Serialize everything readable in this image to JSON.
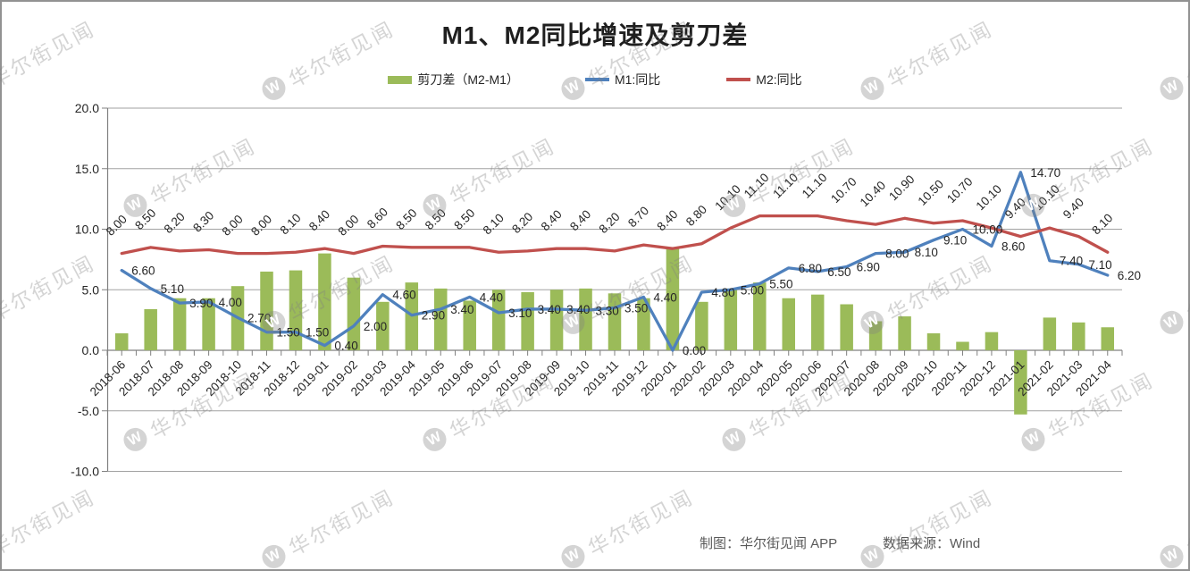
{
  "page": {
    "title": "M1、M2同比增速及剪刀差",
    "footer": {
      "credit": "制图：华尔街见闻 APP",
      "source": "数据来源：Wind"
    },
    "watermark": {
      "text": "华尔街见闻",
      "logo_letter": "W"
    }
  },
  "legend": [
    {
      "label": "剪刀差（M2-M1）",
      "swatch": "bar",
      "color": "#9BBB59"
    },
    {
      "label": "M1:同比",
      "swatch": "line",
      "color": "#4F81BD"
    },
    {
      "label": "M2:同比",
      "swatch": "line",
      "color": "#C0504D"
    }
  ],
  "chart_data": {
    "type": "combo",
    "title": "M1、M2同比增速及剪刀差",
    "categories": [
      "2018-06",
      "2018-07",
      "2018-08",
      "2018-09",
      "2018-10",
      "2018-11",
      "2018-12",
      "2019-01",
      "2019-02",
      "2019-03",
      "2019-04",
      "2019-05",
      "2019-06",
      "2019-07",
      "2019-08",
      "2019-09",
      "2019-10",
      "2019-11",
      "2019-12",
      "2020-01",
      "2020-02",
      "2020-03",
      "2020-04",
      "2020-05",
      "2020-06",
      "2020-07",
      "2020-08",
      "2020-09",
      "2020-10",
      "2020-11",
      "2020-12",
      "2021-01",
      "2021-02",
      "2021-03",
      "2021-04"
    ],
    "series": [
      {
        "name": "剪刀差（M2-M1）",
        "type": "bar",
        "color": "#9BBB59",
        "data_labels": false,
        "values": [
          1.4,
          3.4,
          4.3,
          4.3,
          5.3,
          6.5,
          6.6,
          8.0,
          6.0,
          4.0,
          5.6,
          5.1,
          4.1,
          5.0,
          4.8,
          5.0,
          5.1,
          4.7,
          4.3,
          8.4,
          4.0,
          5.1,
          5.6,
          4.3,
          4.6,
          3.8,
          2.4,
          2.8,
          1.4,
          0.7,
          1.5,
          -5.3,
          2.7,
          2.3,
          1.9
        ]
      },
      {
        "name": "M1:同比",
        "type": "line",
        "color": "#4F81BD",
        "data_labels": true,
        "label_style": "horizontal",
        "values": [
          6.6,
          5.1,
          3.9,
          4.0,
          2.7,
          1.5,
          1.5,
          0.4,
          2.0,
          4.6,
          2.9,
          3.4,
          4.4,
          3.1,
          3.4,
          3.4,
          3.3,
          3.5,
          4.4,
          0.0,
          4.8,
          5.0,
          5.5,
          6.8,
          6.5,
          6.9,
          8.0,
          8.1,
          9.1,
          10.0,
          8.6,
          14.7,
          7.4,
          7.1,
          6.2
        ]
      },
      {
        "name": "M2:同比",
        "type": "line",
        "color": "#C0504D",
        "data_labels": true,
        "label_style": "rotated-45",
        "values": [
          8.0,
          8.5,
          8.2,
          8.3,
          8.0,
          8.0,
          8.1,
          8.4,
          8.0,
          8.6,
          8.5,
          8.5,
          8.5,
          8.1,
          8.2,
          8.4,
          8.4,
          8.2,
          8.7,
          8.4,
          8.8,
          10.1,
          11.1,
          11.1,
          11.1,
          10.7,
          10.4,
          10.9,
          10.5,
          10.7,
          10.1,
          9.4,
          10.1,
          9.4,
          8.1
        ]
      }
    ],
    "y_axis": {
      "min": -10,
      "max": 20,
      "tick_interval": 5,
      "tick_values": [
        20,
        15,
        10,
        5,
        0,
        -5,
        -10
      ],
      "tick_labels": [
        "20.0",
        "15.0",
        "10.0",
        "5.0",
        "0.0",
        "-5.0",
        "-10.0"
      ]
    },
    "grid": true,
    "legend_position": "top",
    "label_decimals": 2
  }
}
